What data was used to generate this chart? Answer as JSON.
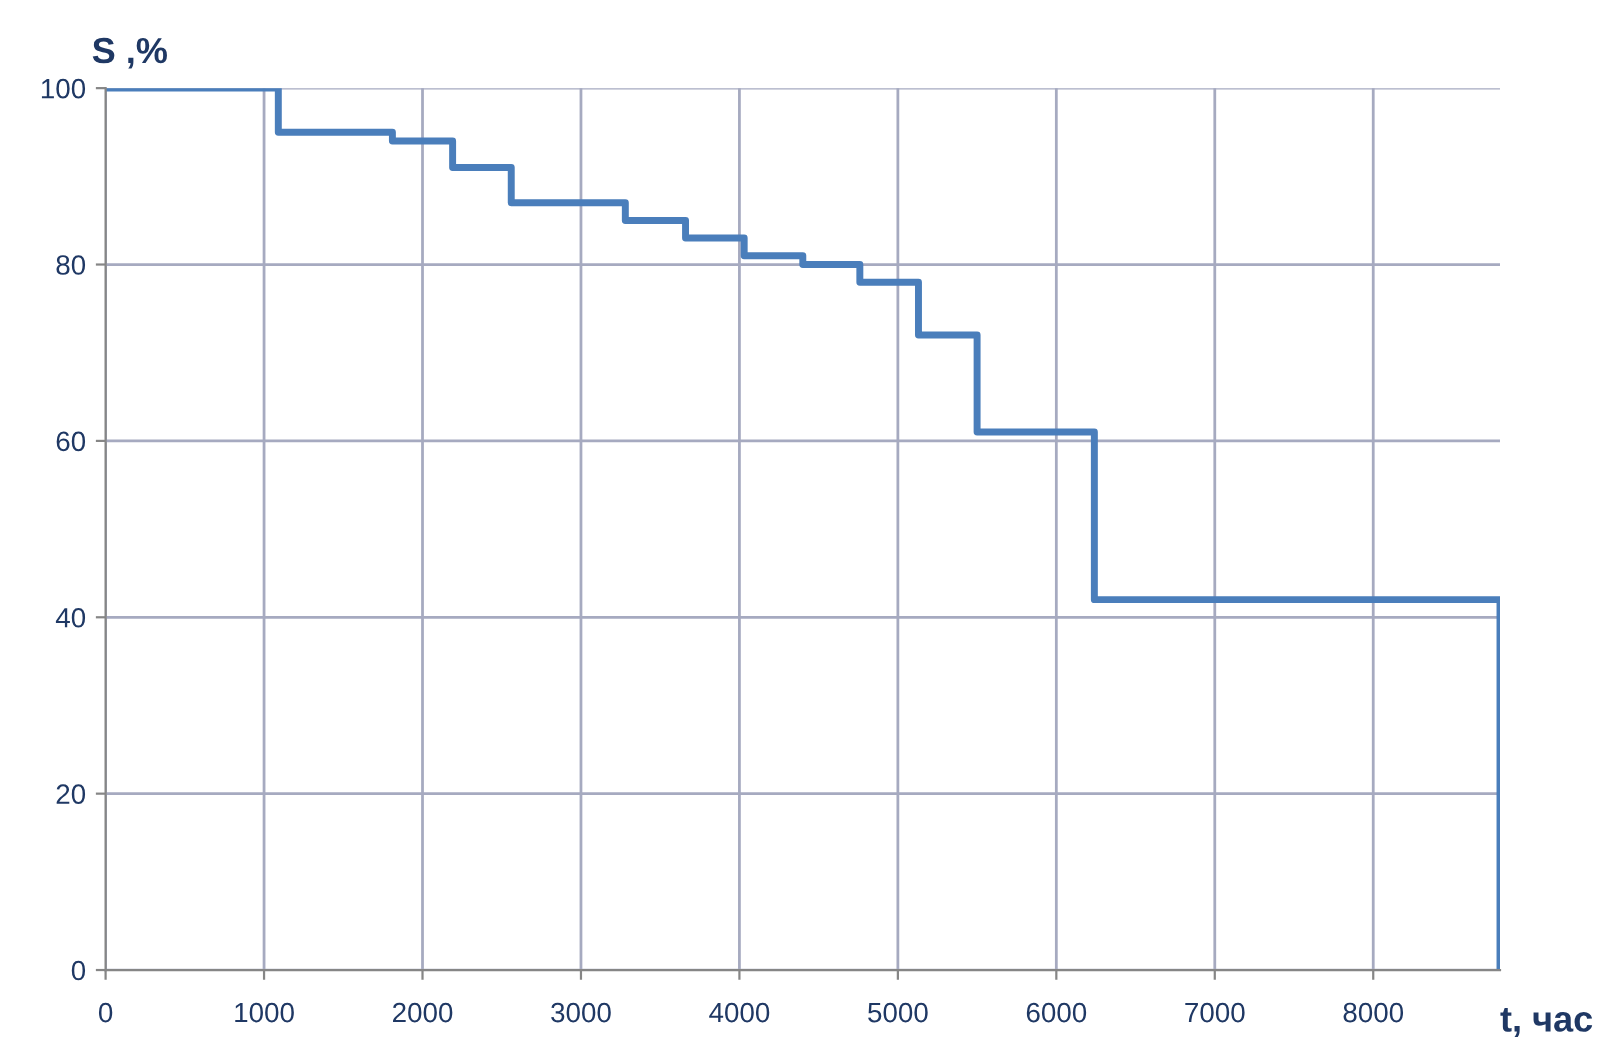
{
  "chart_data": {
    "type": "step",
    "xlabel": "t, час",
    "ylabel": "S ,%",
    "x": [
      0,
      1090,
      1810,
      2190,
      2560,
      3280,
      3660,
      4030,
      4400,
      4760,
      5130,
      5500,
      6240,
      8800,
      8800
    ],
    "series": [
      {
        "color": "#4a7ebb",
        "values": [
          100,
          95,
          94,
          91,
          87,
          85,
          83,
          81,
          80,
          78,
          72,
          61,
          42,
          42,
          0
        ]
      }
    ],
    "xlim": [
      0,
      8800
    ],
    "xticks": [
      0,
      1000,
      2000,
      3000,
      4000,
      5000,
      6000,
      7000,
      8000
    ],
    "ylim": [
      0,
      100
    ],
    "yticks": [
      0,
      20,
      40,
      60,
      80,
      100
    ],
    "grid": true,
    "legend": false,
    "line_style": "solid",
    "marker": "none"
  }
}
